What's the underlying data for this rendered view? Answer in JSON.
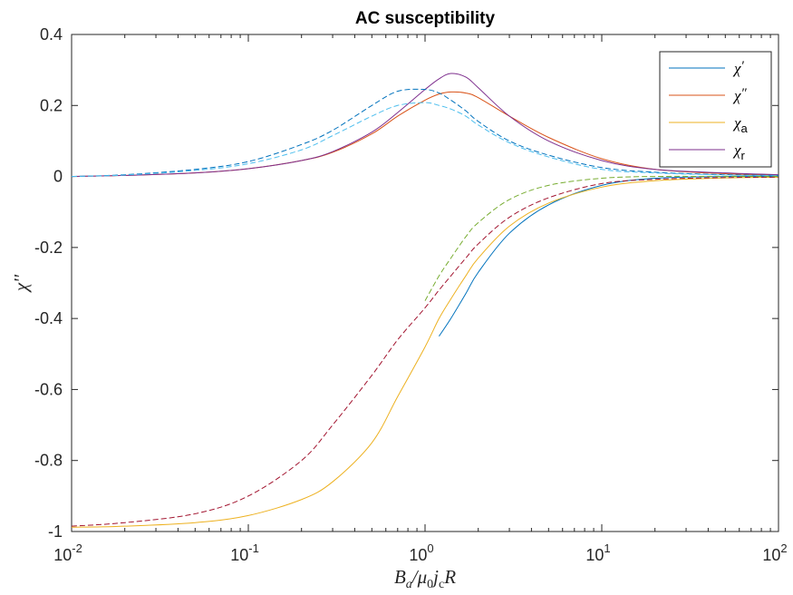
{
  "chart_data": {
    "type": "line",
    "title": "AC susceptibility",
    "xlabel": "B_a/μ_0 j_c R",
    "ylabel": "χ''",
    "xscale": "log",
    "xlim": [
      0.01,
      100
    ],
    "ylim": [
      -1,
      0.4
    ],
    "grid": false,
    "legend_position": "top-right",
    "xticks": [
      {
        "value": 0.01,
        "base": "10",
        "exp": "-2"
      },
      {
        "value": 0.1,
        "base": "10",
        "exp": "-1"
      },
      {
        "value": 1,
        "base": "10",
        "exp": "0"
      },
      {
        "value": 10,
        "base": "10",
        "exp": "1"
      },
      {
        "value": 100,
        "base": "10",
        "exp": "2"
      }
    ],
    "yticks": [
      {
        "value": 0.4,
        "label": "0.4"
      },
      {
        "value": 0.2,
        "label": "0.2"
      },
      {
        "value": 0,
        "label": "0"
      },
      {
        "value": -0.2,
        "label": "-0.2"
      },
      {
        "value": -0.4,
        "label": "-0.4"
      },
      {
        "value": -0.6,
        "label": "-0.6"
      },
      {
        "value": -0.8,
        "label": "-0.8"
      },
      {
        "value": -1,
        "label": "-1"
      }
    ],
    "legend": [
      {
        "base": "χ",
        "mod": "′",
        "modType": "sup",
        "color": "#0072BD"
      },
      {
        "base": "χ",
        "mod": "″",
        "modType": "sup",
        "color": "#D95319"
      },
      {
        "base": "χ",
        "mod": "a",
        "modType": "sub",
        "color": "#EDB120"
      },
      {
        "base": "χ",
        "mod": "r",
        "modType": "sub",
        "color": "#7E2F8E"
      }
    ],
    "x": [
      0.01,
      0.02,
      0.05,
      0.1,
      0.2,
      0.3,
      0.5,
      0.7,
      1.0,
      1.2,
      1.4,
      1.7,
      2.0,
      3.0,
      5.0,
      10,
      20,
      50,
      100
    ],
    "series": [
      {
        "color": "#0072BD",
        "dash": false,
        "values": [
          null,
          null,
          null,
          null,
          null,
          null,
          null,
          null,
          null,
          -0.45,
          -0.4,
          -0.33,
          -0.27,
          -0.16,
          -0.08,
          -0.025,
          -0.005,
          0,
          0
        ]
      },
      {
        "color": "#D95319",
        "dash": false,
        "values": [
          0,
          0.003,
          0.01,
          0.022,
          0.045,
          0.068,
          0.12,
          0.17,
          0.215,
          0.232,
          0.238,
          0.235,
          0.222,
          0.17,
          0.11,
          0.05,
          0.02,
          0.008,
          0.004
        ]
      },
      {
        "color": "#EDB120",
        "dash": false,
        "values": [
          -0.988,
          -0.985,
          -0.975,
          -0.955,
          -0.91,
          -0.86,
          -0.75,
          -0.62,
          -0.48,
          -0.4,
          -0.345,
          -0.28,
          -0.23,
          -0.14,
          -0.075,
          -0.03,
          -0.012,
          -0.004,
          -0.002
        ]
      },
      {
        "color": "#7E2F8E",
        "dash": false,
        "values": [
          0,
          0.003,
          0.01,
          0.022,
          0.045,
          0.07,
          0.125,
          0.18,
          0.245,
          0.275,
          0.29,
          0.28,
          0.25,
          0.17,
          0.1,
          0.045,
          0.02,
          0.01,
          0.005
        ]
      },
      {
        "color": "#0072BD",
        "dash": true,
        "values": [
          0,
          0.005,
          0.02,
          0.042,
          0.09,
          0.13,
          0.2,
          0.24,
          0.245,
          0.235,
          0.215,
          0.185,
          0.155,
          0.1,
          0.06,
          0.025,
          0.012,
          0.005,
          0.003
        ]
      },
      {
        "color": "#4DBEEE",
        "dash": true,
        "values": [
          0,
          0.004,
          0.017,
          0.036,
          0.075,
          0.115,
          0.17,
          0.2,
          0.208,
          0.2,
          0.19,
          0.17,
          0.145,
          0.095,
          0.055,
          0.02,
          0.01,
          0.004,
          0.002
        ]
      },
      {
        "color": "#A2142F",
        "dash": true,
        "values": [
          -0.985,
          -0.975,
          -0.95,
          -0.9,
          -0.8,
          -0.7,
          -0.56,
          -0.46,
          -0.37,
          -0.32,
          -0.28,
          -0.23,
          -0.19,
          -0.115,
          -0.06,
          -0.02,
          -0.008,
          -0.003,
          -0.002
        ]
      },
      {
        "color": "#77AC30",
        "dash": true,
        "values": [
          null,
          null,
          null,
          null,
          null,
          null,
          null,
          null,
          -0.35,
          -0.28,
          -0.23,
          -0.17,
          -0.13,
          -0.065,
          -0.025,
          -0.005,
          0,
          0,
          0
        ]
      }
    ]
  }
}
